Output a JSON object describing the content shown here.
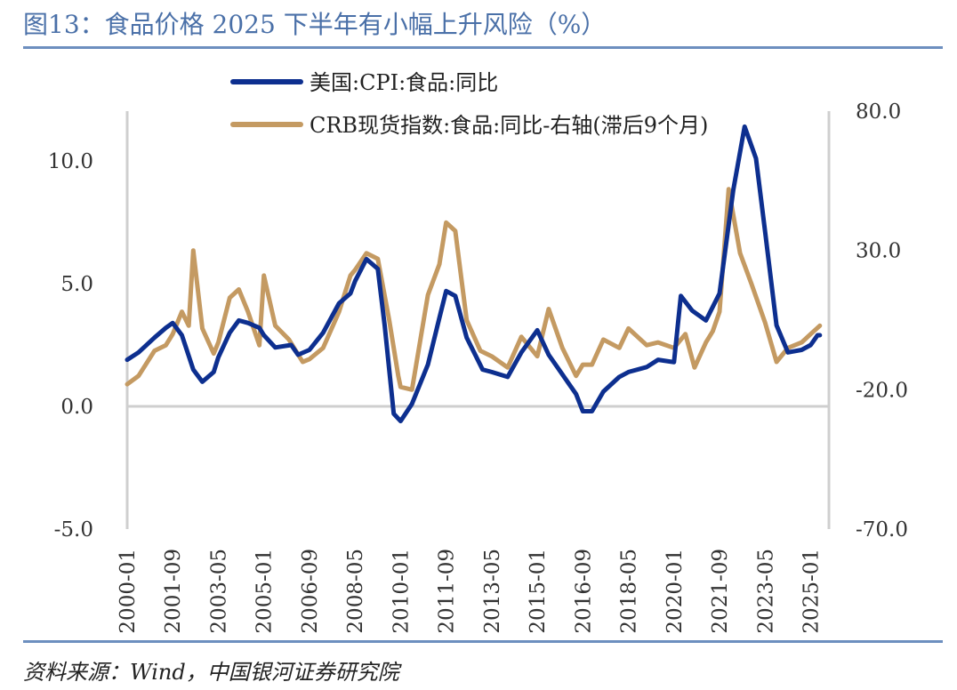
{
  "header": {
    "title": "图13：食品价格 2025 下半年有小幅上升风险（%）"
  },
  "footer": {
    "source": "资料来源：Wind，中国银河证券研究院"
  },
  "chart_data": {
    "type": "line",
    "title": "图13：食品价格 2025 下半年有小幅上升风险（%）",
    "x_ticks": [
      "2000-01",
      "2001-09",
      "2003-05",
      "2005-01",
      "2006-09",
      "2008-05",
      "2010-01",
      "2011-09",
      "2013-05",
      "2015-01",
      "2016-09",
      "2018-05",
      "2020-01",
      "2021-09",
      "2023-05",
      "2025-01"
    ],
    "x_range": [
      "2000-01",
      "2025-09"
    ],
    "y_left": {
      "ticks": [
        "10.0",
        "5.0",
        "0.0",
        "-5.0"
      ],
      "range": [
        -5,
        11.5
      ]
    },
    "y_right": {
      "ticks": [
        "80.0",
        "30.0",
        "-20.0",
        "-70.0"
      ],
      "range": [
        -70,
        80
      ]
    },
    "legend_position": "top-center",
    "grid": false,
    "series": [
      {
        "name": "美国:CPI:食品:同比",
        "axis": "left",
        "color": "#0d2f8f",
        "points": [
          [
            "2000-01",
            1.9
          ],
          [
            "2000-06",
            2.2
          ],
          [
            "2001-01",
            2.8
          ],
          [
            "2001-06",
            3.2
          ],
          [
            "2001-09",
            3.4
          ],
          [
            "2002-01",
            2.9
          ],
          [
            "2002-06",
            1.5
          ],
          [
            "2002-10",
            1.0
          ],
          [
            "2003-03",
            1.4
          ],
          [
            "2003-05",
            2.0
          ],
          [
            "2003-10",
            3.0
          ],
          [
            "2004-02",
            3.5
          ],
          [
            "2004-06",
            3.4
          ],
          [
            "2004-11",
            3.2
          ],
          [
            "2005-01",
            2.9
          ],
          [
            "2005-06",
            2.4
          ],
          [
            "2006-01",
            2.5
          ],
          [
            "2006-04",
            2.1
          ],
          [
            "2006-09",
            2.3
          ],
          [
            "2007-03",
            3.0
          ],
          [
            "2007-10",
            4.2
          ],
          [
            "2008-03",
            4.6
          ],
          [
            "2008-05",
            5.1
          ],
          [
            "2008-10",
            6.0
          ],
          [
            "2009-03",
            5.6
          ],
          [
            "2009-06",
            3.3
          ],
          [
            "2009-10",
            -0.3
          ],
          [
            "2010-01",
            -0.6
          ],
          [
            "2010-06",
            0.1
          ],
          [
            "2011-01",
            1.7
          ],
          [
            "2011-06",
            3.6
          ],
          [
            "2011-09",
            4.7
          ],
          [
            "2012-01",
            4.5
          ],
          [
            "2012-06",
            2.8
          ],
          [
            "2013-01",
            1.5
          ],
          [
            "2013-05",
            1.4
          ],
          [
            "2013-12",
            1.2
          ],
          [
            "2014-06",
            2.2
          ],
          [
            "2015-01",
            3.1
          ],
          [
            "2015-06",
            2.1
          ],
          [
            "2015-12",
            1.3
          ],
          [
            "2016-06",
            0.5
          ],
          [
            "2016-09",
            -0.2
          ],
          [
            "2017-01",
            -0.2
          ],
          [
            "2017-06",
            0.6
          ],
          [
            "2018-01",
            1.2
          ],
          [
            "2018-05",
            1.4
          ],
          [
            "2019-01",
            1.6
          ],
          [
            "2019-06",
            1.9
          ],
          [
            "2020-01",
            1.8
          ],
          [
            "2020-04",
            4.5
          ],
          [
            "2020-09",
            3.9
          ],
          [
            "2021-03",
            3.5
          ],
          [
            "2021-09",
            4.6
          ],
          [
            "2022-03",
            8.8
          ],
          [
            "2022-08",
            11.4
          ],
          [
            "2023-01",
            10.1
          ],
          [
            "2023-05",
            7.1
          ],
          [
            "2023-10",
            3.3
          ],
          [
            "2024-03",
            2.2
          ],
          [
            "2024-09",
            2.3
          ],
          [
            "2025-01",
            2.5
          ],
          [
            "2025-04",
            2.9
          ],
          [
            "2025-05",
            2.9
          ]
        ]
      },
      {
        "name": "CRB现货指数:食品:同比-右轴(滞后9个月)",
        "axis": "right",
        "color": "#c49a62",
        "points": [
          [
            "2000-01",
            -18
          ],
          [
            "2000-06",
            -15
          ],
          [
            "2001-01",
            -6
          ],
          [
            "2001-06",
            -4
          ],
          [
            "2001-09",
            0
          ],
          [
            "2002-01",
            8
          ],
          [
            "2002-04",
            3
          ],
          [
            "2002-06",
            30
          ],
          [
            "2002-10",
            2
          ],
          [
            "2003-03",
            -7
          ],
          [
            "2003-05",
            -3
          ],
          [
            "2003-10",
            13
          ],
          [
            "2004-02",
            16
          ],
          [
            "2004-06",
            8
          ],
          [
            "2004-11",
            -4
          ],
          [
            "2005-01",
            21
          ],
          [
            "2005-06",
            3
          ],
          [
            "2005-12",
            -2
          ],
          [
            "2006-06",
            -10
          ],
          [
            "2006-09",
            -9
          ],
          [
            "2007-03",
            -5
          ],
          [
            "2007-10",
            8
          ],
          [
            "2008-03",
            21
          ],
          [
            "2008-05",
            23
          ],
          [
            "2008-10",
            29
          ],
          [
            "2009-03",
            27
          ],
          [
            "2009-08",
            5
          ],
          [
            "2009-12",
            -15
          ],
          [
            "2010-01",
            -19
          ],
          [
            "2010-06",
            -20
          ],
          [
            "2011-01",
            14
          ],
          [
            "2011-06",
            25
          ],
          [
            "2011-09",
            40
          ],
          [
            "2012-01",
            37
          ],
          [
            "2012-06",
            5
          ],
          [
            "2012-12",
            -6
          ],
          [
            "2013-05",
            -8
          ],
          [
            "2013-12",
            -12
          ],
          [
            "2014-06",
            -1
          ],
          [
            "2015-01",
            -8
          ],
          [
            "2015-06",
            9
          ],
          [
            "2015-12",
            -5
          ],
          [
            "2016-06",
            -15
          ],
          [
            "2016-09",
            -11
          ],
          [
            "2017-01",
            -11
          ],
          [
            "2017-06",
            -2
          ],
          [
            "2018-01",
            -5
          ],
          [
            "2018-05",
            2
          ],
          [
            "2019-01",
            -4
          ],
          [
            "2019-06",
            -3
          ],
          [
            "2020-01",
            -5
          ],
          [
            "2020-06",
            0
          ],
          [
            "2020-10",
            -12
          ],
          [
            "2021-03",
            -3
          ],
          [
            "2021-06",
            1
          ],
          [
            "2021-09",
            8
          ],
          [
            "2022-01",
            52
          ],
          [
            "2022-06",
            29
          ],
          [
            "2022-11",
            18
          ],
          [
            "2023-05",
            4
          ],
          [
            "2023-10",
            -10
          ],
          [
            "2024-03",
            -5
          ],
          [
            "2024-09",
            -3
          ],
          [
            "2025-01",
            0
          ],
          [
            "2025-05",
            3
          ]
        ]
      }
    ]
  }
}
